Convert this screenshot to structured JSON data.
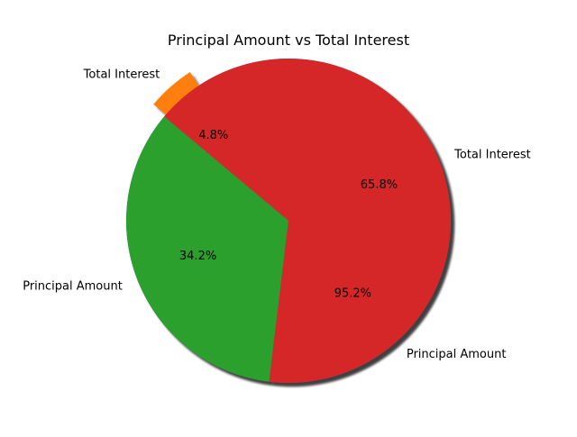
{
  "chart_data": [
    {
      "type": "pie",
      "title": "Principal Amount vs Total Interest",
      "labels": [
        "Principal Amount",
        "Total Interest"
      ],
      "values": [
        95.2,
        4.8
      ],
      "percent_labels": [
        "95.2%",
        "4.8%"
      ],
      "colors": [
        "#1f77b4",
        "#ff7f0e"
      ],
      "exploded": [
        false,
        true
      ],
      "shadow": true
    },
    {
      "type": "pie",
      "labels": [
        "Principal Amount",
        "Total Interest"
      ],
      "values": [
        34.2,
        65.8
      ],
      "percent_labels": [
        "34.2%",
        "65.8%"
      ],
      "colors": [
        "#2ca02c",
        "#d62728"
      ],
      "exploded": [
        false,
        false
      ],
      "shadow": true
    }
  ]
}
